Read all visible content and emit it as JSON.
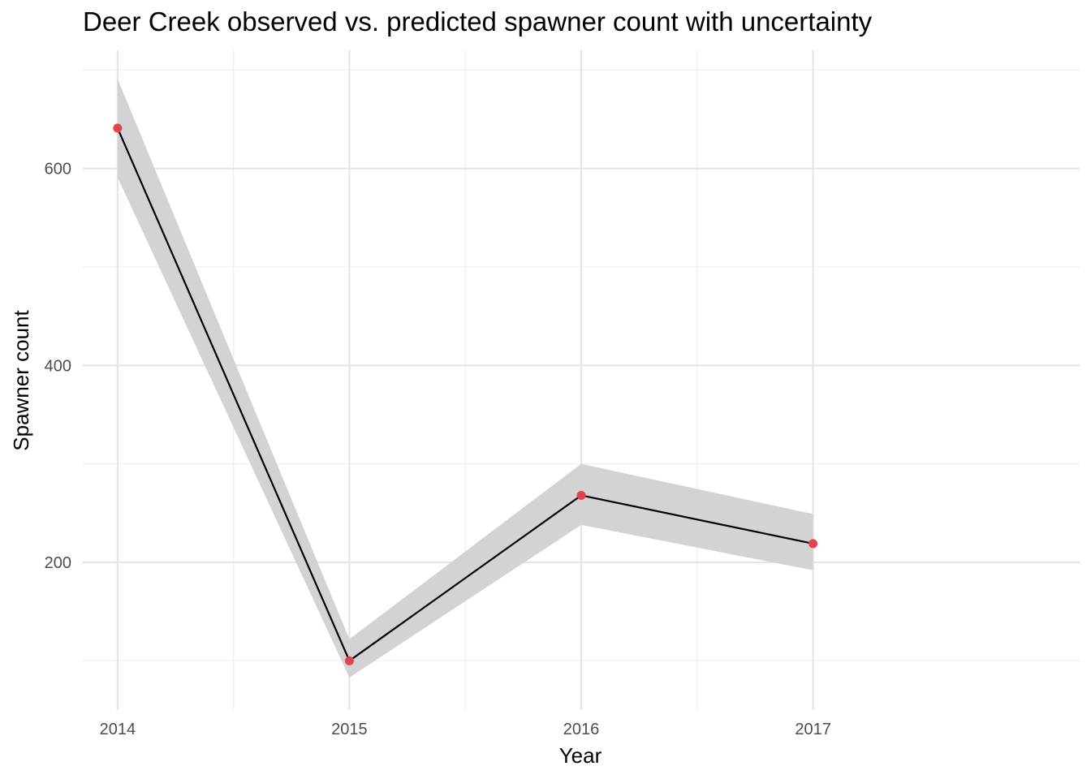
{
  "chart_data": {
    "type": "line",
    "title": "Deer Creek observed vs. predicted spawner count with uncertainty",
    "xlabel": "Year",
    "ylabel": "Spawner count",
    "x": [
      2014,
      2015,
      2016,
      2017
    ],
    "x_tick_labels": [
      "2014",
      "2015",
      "2016",
      "2017"
    ],
    "y_ticks": [
      200,
      400,
      600
    ],
    "xlim": [
      2013.85,
      2018.15
    ],
    "ylim": [
      50,
      720
    ],
    "grid": true,
    "legend": "none",
    "series": [
      {
        "kind": "predicted",
        "values": [
          641,
          100,
          268,
          219
        ],
        "lower": [
          591,
          83,
          238,
          192
        ],
        "upper": [
          691,
          122,
          300,
          249
        ],
        "line_color": "#000000",
        "band_color": "#d3d3d3"
      },
      {
        "kind": "observed",
        "values": [
          641,
          100,
          268,
          219
        ],
        "point_color": "#e2434f"
      }
    ]
  }
}
